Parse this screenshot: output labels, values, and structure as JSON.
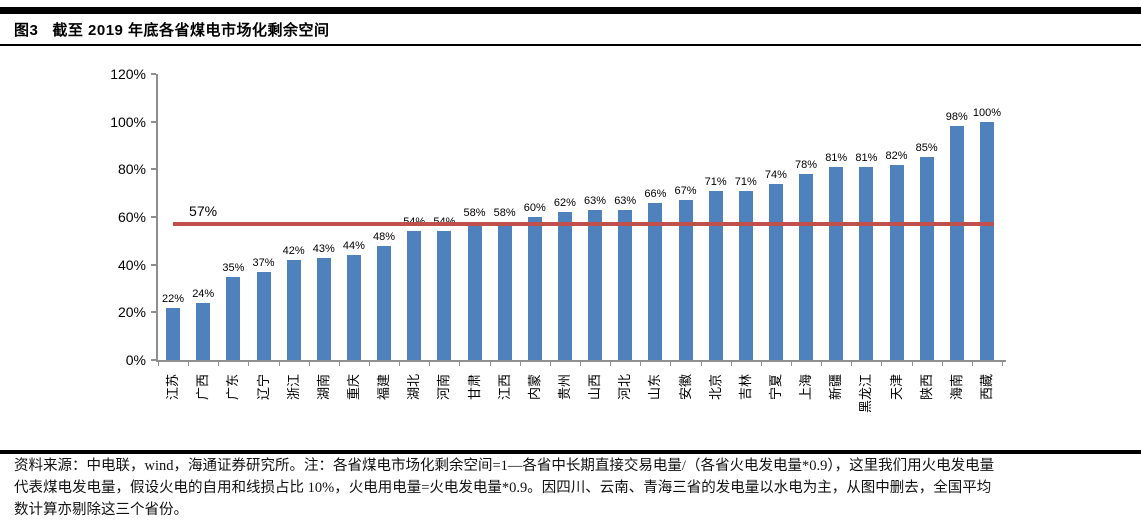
{
  "header": {
    "figure_label": "图3",
    "title": "截至 2019 年底各省煤电市场化剩余空间"
  },
  "chart_data": {
    "type": "bar",
    "title": "截至2019年底各省煤电市场化剩余空间",
    "categories": [
      "江苏",
      "广西",
      "广东",
      "辽宁",
      "浙江",
      "湖南",
      "重庆",
      "福建",
      "湖北",
      "河南",
      "甘肃",
      "江西",
      "内蒙",
      "贵州",
      "山西",
      "河北",
      "山东",
      "安徽",
      "北京",
      "吉林",
      "宁夏",
      "上海",
      "新疆",
      "黑龙江",
      "天津",
      "陕西",
      "海南",
      "西藏"
    ],
    "values": [
      22,
      24,
      35,
      37,
      42,
      43,
      44,
      48,
      54,
      54,
      58,
      58,
      60,
      62,
      63,
      63,
      66,
      67,
      71,
      71,
      74,
      78,
      81,
      81,
      82,
      85,
      98,
      100
    ],
    "value_labels": [
      "22%",
      "24%",
      "35%",
      "37%",
      "42%",
      "43%",
      "44%",
      "48%",
      "54%",
      "54%",
      "58%",
      "58%",
      "60%",
      "62%",
      "63%",
      "63%",
      "66%",
      "67%",
      "71%",
      "71%",
      "74%",
      "78%",
      "81%",
      "81%",
      "82%",
      "85%",
      "98%",
      "100%"
    ],
    "xlabel": "",
    "ylabel": "",
    "ylim": [
      0,
      120
    ],
    "ytick_values": [
      0,
      20,
      40,
      60,
      80,
      100,
      120
    ],
    "ytick_labels": [
      "0%",
      "20%",
      "40%",
      "60%",
      "80%",
      "100%",
      "120%"
    ],
    "grid": false,
    "legend_position": "none",
    "bar_color": "#4F81BD",
    "axis_color": "#8f8f8f",
    "reference_line": {
      "value": 57,
      "label": "57%",
      "color": "#C0504D"
    }
  },
  "footer": {
    "lines": [
      "资料来源：中电联，wind，海通证券研究所。注：各省煤电市场化剩余空间=1—各省中长期直接交易电量/（各省火电发电量*0.9），这里我们用火电发电量",
      "代表煤电发电量，假设火电的自用和线损占比 10%，火电用电量=火电发电量*0.9。因四川、云南、青海三省的发电量以水电为主，从图中删去，全国平均",
      "数计算亦剔除这三个省份。"
    ]
  }
}
